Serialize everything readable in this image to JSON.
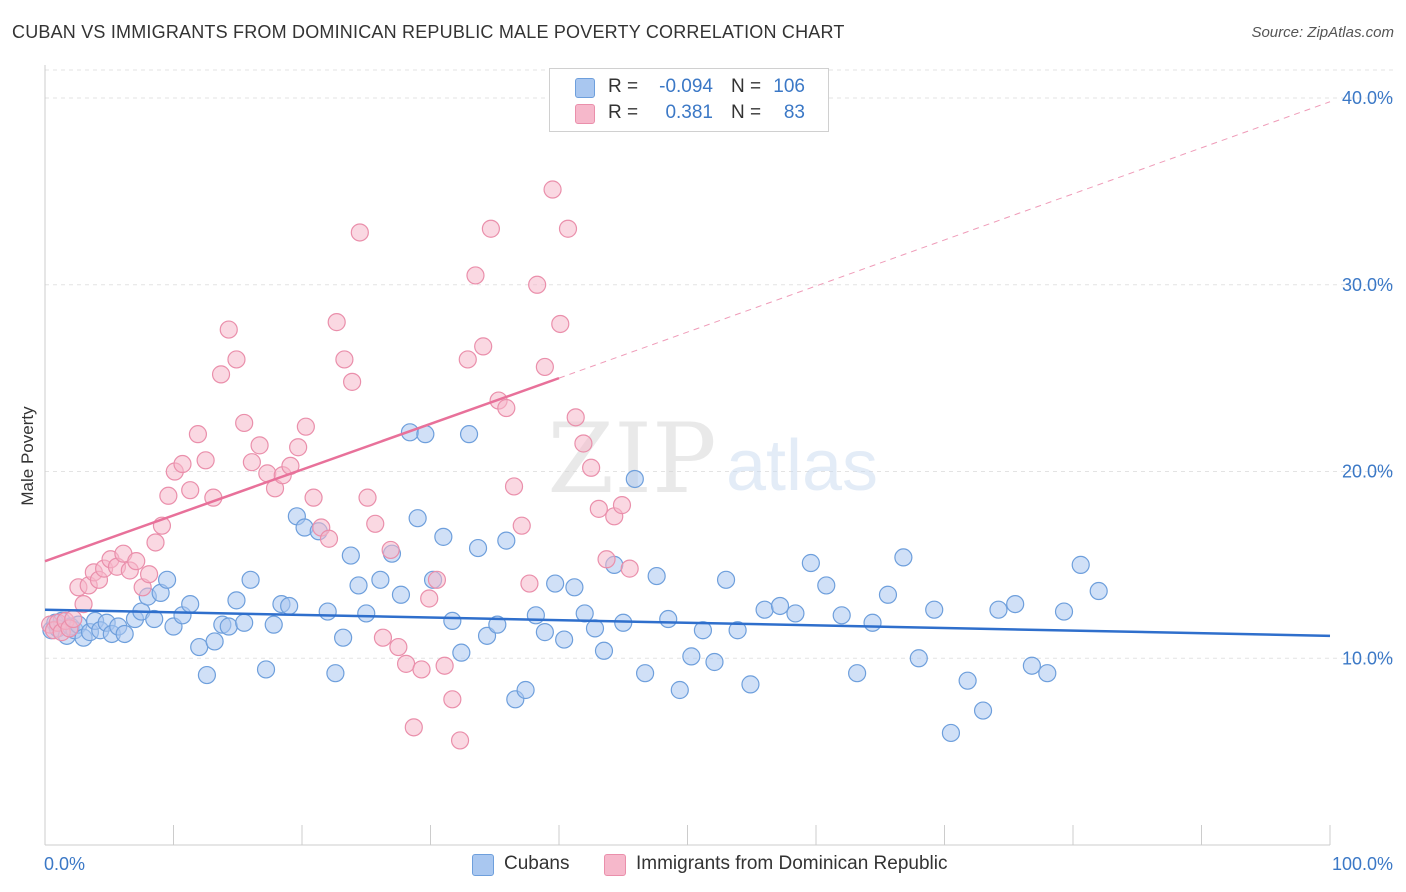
{
  "header": {
    "title": "CUBAN VS IMMIGRANTS FROM DOMINICAN REPUBLIC MALE POVERTY CORRELATION CHART",
    "source": "Source: ZipAtlas.com"
  },
  "watermark": {
    "zip": "ZIP",
    "atlas": "atlas"
  },
  "legend": {
    "rows": [
      {
        "r_label": "R =",
        "r_value": "-0.094",
        "n_label": "N =",
        "n_value": "106",
        "color": "#a9c7f0"
      },
      {
        "r_label": "R =",
        "r_value": "0.381",
        "n_label": "N =",
        "n_value": "83",
        "color": "#f6b8cb"
      }
    ]
  },
  "bottom_legend": [
    {
      "label": "Cubans",
      "color": "#a9c7f0"
    },
    {
      "label": "Immigrants from Dominican Republic",
      "color": "#f6b8cb"
    }
  ],
  "chart_data": {
    "type": "scatter",
    "ylabel": "Male Poverty",
    "xlabel": "",
    "x_tick_labels": [
      "0.0%",
      "100.0%"
    ],
    "y_tick_labels": [
      "10.0%",
      "20.0%",
      "30.0%",
      "40.0%"
    ],
    "y_ticks": [
      10,
      20,
      30,
      40
    ],
    "xlim": [
      0,
      100
    ],
    "ylim": [
      0,
      41.5
    ],
    "grid": true,
    "legend_position": "top-center",
    "colors": {
      "cubans_fill": "#a9c7f0",
      "cubans_stroke": "#6e9fdc",
      "cubans_line": "#2f6fcc",
      "dominican_fill": "#f6b8cb",
      "dominican_stroke": "#ea8fab",
      "dominican_line": "#e8719a",
      "tick_label": "#3b78c6"
    },
    "series": [
      {
        "name": "Cubans",
        "trend": {
          "x0": 0,
          "y0": 12.6,
          "x1": 100,
          "y1": 11.2,
          "dashed_extension": false
        },
        "points": [
          [
            0.5,
            11.5
          ],
          [
            0.8,
            11.9
          ],
          [
            1.0,
            11.6
          ],
          [
            1.3,
            12.0
          ],
          [
            1.7,
            11.2
          ],
          [
            2.0,
            11.7
          ],
          [
            2.3,
            11.5
          ],
          [
            2.6,
            11.8
          ],
          [
            3.0,
            11.1
          ],
          [
            3.5,
            11.4
          ],
          [
            3.9,
            12.0
          ],
          [
            4.3,
            11.5
          ],
          [
            4.8,
            11.9
          ],
          [
            5.2,
            11.3
          ],
          [
            5.7,
            11.7
          ],
          [
            6.2,
            11.3
          ],
          [
            7.0,
            12.1
          ],
          [
            7.5,
            12.5
          ],
          [
            8.0,
            13.3
          ],
          [
            8.5,
            12.1
          ],
          [
            9.0,
            13.5
          ],
          [
            9.5,
            14.2
          ],
          [
            10.0,
            11.7
          ],
          [
            10.7,
            12.3
          ],
          [
            11.3,
            12.9
          ],
          [
            12.0,
            10.6
          ],
          [
            12.6,
            9.1
          ],
          [
            13.2,
            10.9
          ],
          [
            13.8,
            11.8
          ],
          [
            14.3,
            11.7
          ],
          [
            14.9,
            13.1
          ],
          [
            15.5,
            11.9
          ],
          [
            16.0,
            14.2
          ],
          [
            17.2,
            9.4
          ],
          [
            17.8,
            11.8
          ],
          [
            18.4,
            12.9
          ],
          [
            19.0,
            12.8
          ],
          [
            19.6,
            17.6
          ],
          [
            20.2,
            17.0
          ],
          [
            21.3,
            16.8
          ],
          [
            22.0,
            12.5
          ],
          [
            22.6,
            9.2
          ],
          [
            23.2,
            11.1
          ],
          [
            23.8,
            15.5
          ],
          [
            24.4,
            13.9
          ],
          [
            25.0,
            12.4
          ],
          [
            26.1,
            14.2
          ],
          [
            27.0,
            15.6
          ],
          [
            27.7,
            13.4
          ],
          [
            28.4,
            22.1
          ],
          [
            29.0,
            17.5
          ],
          [
            29.6,
            22.0
          ],
          [
            30.2,
            14.2
          ],
          [
            31.0,
            16.5
          ],
          [
            31.7,
            12.0
          ],
          [
            32.4,
            10.3
          ],
          [
            33.0,
            22.0
          ],
          [
            33.7,
            15.9
          ],
          [
            34.4,
            11.2
          ],
          [
            35.2,
            11.8
          ],
          [
            35.9,
            16.3
          ],
          [
            36.6,
            7.8
          ],
          [
            37.4,
            8.3
          ],
          [
            38.2,
            12.3
          ],
          [
            38.9,
            11.4
          ],
          [
            39.7,
            14.0
          ],
          [
            40.4,
            11.0
          ],
          [
            41.2,
            13.8
          ],
          [
            42.0,
            12.4
          ],
          [
            42.8,
            11.6
          ],
          [
            43.5,
            10.4
          ],
          [
            44.3,
            15.0
          ],
          [
            45.0,
            11.9
          ],
          [
            45.9,
            19.6
          ],
          [
            46.7,
            9.2
          ],
          [
            47.6,
            14.4
          ],
          [
            48.5,
            12.1
          ],
          [
            49.4,
            8.3
          ],
          [
            50.3,
            10.1
          ],
          [
            51.2,
            11.5
          ],
          [
            52.1,
            9.8
          ],
          [
            53.0,
            14.2
          ],
          [
            53.9,
            11.5
          ],
          [
            54.9,
            8.6
          ],
          [
            56.0,
            12.6
          ],
          [
            57.2,
            12.8
          ],
          [
            58.4,
            12.4
          ],
          [
            59.6,
            15.1
          ],
          [
            60.8,
            13.9
          ],
          [
            62.0,
            12.3
          ],
          [
            63.2,
            9.2
          ],
          [
            64.4,
            11.9
          ],
          [
            65.6,
            13.4
          ],
          [
            66.8,
            15.4
          ],
          [
            68.0,
            10.0
          ],
          [
            69.2,
            12.6
          ],
          [
            70.5,
            6.0
          ],
          [
            71.8,
            8.8
          ],
          [
            73.0,
            7.2
          ],
          [
            74.2,
            12.6
          ],
          [
            75.5,
            12.9
          ],
          [
            76.8,
            9.6
          ],
          [
            78.0,
            9.2
          ],
          [
            79.3,
            12.5
          ],
          [
            80.6,
            15.0
          ],
          [
            82.0,
            13.6
          ]
        ]
      },
      {
        "name": "Immigrants from Dominican Republic",
        "trend": {
          "x0": 0,
          "y0": 15.2,
          "x1": 40,
          "y1": 25.0,
          "dashed_extension": true,
          "x_end": 100,
          "y_end": 39.8
        },
        "points": [
          [
            0.4,
            11.8
          ],
          [
            0.7,
            11.5
          ],
          [
            1.0,
            11.9
          ],
          [
            1.3,
            11.4
          ],
          [
            1.6,
            12.0
          ],
          [
            1.9,
            11.6
          ],
          [
            2.2,
            12.1
          ],
          [
            2.6,
            13.8
          ],
          [
            3.0,
            12.9
          ],
          [
            3.4,
            13.9
          ],
          [
            3.8,
            14.6
          ],
          [
            4.2,
            14.2
          ],
          [
            4.6,
            14.8
          ],
          [
            5.1,
            15.3
          ],
          [
            5.6,
            14.9
          ],
          [
            6.1,
            15.6
          ],
          [
            6.6,
            14.7
          ],
          [
            7.1,
            15.2
          ],
          [
            7.6,
            13.8
          ],
          [
            8.1,
            14.5
          ],
          [
            8.6,
            16.2
          ],
          [
            9.1,
            17.1
          ],
          [
            9.6,
            18.7
          ],
          [
            10.1,
            20.0
          ],
          [
            10.7,
            20.4
          ],
          [
            11.3,
            19.0
          ],
          [
            11.9,
            22.0
          ],
          [
            12.5,
            20.6
          ],
          [
            13.1,
            18.6
          ],
          [
            13.7,
            25.2
          ],
          [
            14.3,
            27.6
          ],
          [
            14.9,
            26.0
          ],
          [
            15.5,
            22.6
          ],
          [
            16.1,
            20.5
          ],
          [
            16.7,
            21.4
          ],
          [
            17.3,
            19.9
          ],
          [
            17.9,
            19.1
          ],
          [
            18.5,
            19.8
          ],
          [
            19.1,
            20.3
          ],
          [
            19.7,
            21.3
          ],
          [
            20.3,
            22.4
          ],
          [
            20.9,
            18.6
          ],
          [
            21.5,
            17.0
          ],
          [
            22.1,
            16.4
          ],
          [
            22.7,
            28.0
          ],
          [
            23.3,
            26.0
          ],
          [
            23.9,
            24.8
          ],
          [
            24.5,
            32.8
          ],
          [
            25.1,
            18.6
          ],
          [
            25.7,
            17.2
          ],
          [
            26.3,
            11.1
          ],
          [
            26.9,
            15.8
          ],
          [
            27.5,
            10.6
          ],
          [
            28.1,
            9.7
          ],
          [
            28.7,
            6.3
          ],
          [
            29.3,
            9.4
          ],
          [
            29.9,
            13.2
          ],
          [
            30.5,
            14.2
          ],
          [
            31.1,
            9.6
          ],
          [
            31.7,
            7.8
          ],
          [
            32.3,
            5.6
          ],
          [
            32.9,
            26.0
          ],
          [
            33.5,
            30.5
          ],
          [
            34.1,
            26.7
          ],
          [
            34.7,
            33.0
          ],
          [
            35.3,
            23.8
          ],
          [
            35.9,
            23.4
          ],
          [
            36.5,
            19.2
          ],
          [
            37.1,
            17.1
          ],
          [
            37.7,
            14.0
          ],
          [
            38.3,
            30.0
          ],
          [
            38.9,
            25.6
          ],
          [
            39.5,
            35.1
          ],
          [
            40.1,
            27.9
          ],
          [
            40.7,
            33.0
          ],
          [
            41.3,
            22.9
          ],
          [
            41.9,
            21.5
          ],
          [
            42.5,
            20.2
          ],
          [
            43.1,
            18.0
          ],
          [
            43.7,
            15.3
          ],
          [
            44.3,
            17.6
          ],
          [
            44.9,
            18.2
          ],
          [
            45.5,
            14.8
          ]
        ]
      }
    ]
  }
}
